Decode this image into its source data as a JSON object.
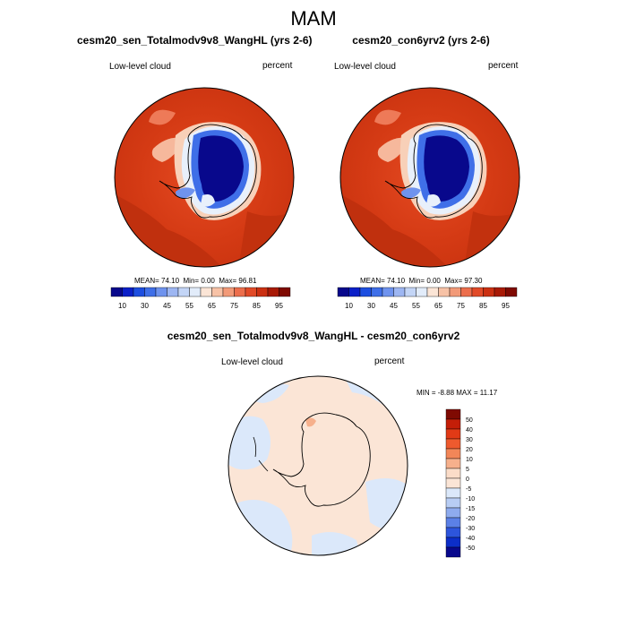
{
  "title": "MAM",
  "panels": [
    {
      "title": "cesm20_sen_Totalmodv9v8_WangHL (yrs 2-6)",
      "left_label": "Low-level cloud",
      "right_label": "percent",
      "stats": {
        "mean_label": "MEAN=",
        "mean": "74.10",
        "min_label": "Min=",
        "min": "0.00",
        "max_label": "Max=",
        "max": "96.81"
      }
    },
    {
      "title": "cesm20_con6yrv2 (yrs 2-6)",
      "left_label": "Low-level cloud",
      "right_label": "percent",
      "stats": {
        "mean_label": "MEAN=",
        "mean": "74.10",
        "min_label": "Min=",
        "min": "0.00",
        "max_label": "Max=",
        "max": "97.30"
      }
    }
  ],
  "diff_panel": {
    "title": "cesm20_sen_Totalmodv9v8_WangHL - cesm20_con6yrv2",
    "left_label": "Low-level cloud",
    "right_label": "percent",
    "stats": {
      "min_label": "MIN =",
      "min": "-8.88",
      "max_label": "MAX =",
      "max": "11.17"
    }
  },
  "chart_data": [
    {
      "type": "heatmap",
      "projection": "south-polar-stereographic",
      "title": "cesm20_sen_Totalmodv9v8_WangHL (yrs 2-6)",
      "variable": "Low-level cloud",
      "units": "percent",
      "colorbar_levels": [
        10,
        20,
        30,
        40,
        45,
        50,
        55,
        60,
        65,
        70,
        75,
        80,
        85,
        90,
        95
      ],
      "colorbar_tick_labels": [
        "10",
        "30",
        "45",
        "55",
        "65",
        "75",
        "85",
        "95"
      ],
      "colorbar_colors": [
        "#08088c",
        "#0b20c8",
        "#1d4ee0",
        "#3f6fe8",
        "#6f93ee",
        "#9db6f2",
        "#c3d5f6",
        "#e2ecfa",
        "#fbe5d6",
        "#f7c2a6",
        "#f29a78",
        "#ec6e4c",
        "#e14a28",
        "#cb3012",
        "#a81a06",
        "#7f0a02"
      ],
      "mean": 74.1,
      "min": 0.0,
      "max": 96.81
    },
    {
      "type": "heatmap",
      "projection": "south-polar-stereographic",
      "title": "cesm20_con6yrv2 (yrs 2-6)",
      "variable": "Low-level cloud",
      "units": "percent",
      "colorbar_levels": [
        10,
        20,
        30,
        40,
        45,
        50,
        55,
        60,
        65,
        70,
        75,
        80,
        85,
        90,
        95
      ],
      "colorbar_tick_labels": [
        "10",
        "30",
        "45",
        "55",
        "65",
        "75",
        "85",
        "95"
      ],
      "colorbar_colors": [
        "#08088c",
        "#0b20c8",
        "#1d4ee0",
        "#3f6fe8",
        "#6f93ee",
        "#9db6f2",
        "#c3d5f6",
        "#e2ecfa",
        "#fbe5d6",
        "#f7c2a6",
        "#f29a78",
        "#ec6e4c",
        "#e14a28",
        "#cb3012",
        "#a81a06",
        "#7f0a02"
      ],
      "mean": 74.1,
      "min": 0.0,
      "max": 97.3
    },
    {
      "type": "heatmap",
      "projection": "south-polar-stereographic",
      "title": "cesm20_sen_Totalmodv9v8_WangHL - cesm20_con6yrv2",
      "variable": "Low-level cloud",
      "units": "percent",
      "colorbar_levels": [
        "50",
        "40",
        "30",
        "20",
        "10",
        "5",
        "0",
        "-5",
        "-10",
        "-15",
        "-20",
        "-30",
        "-40",
        "-50"
      ],
      "colorbar_colors": [
        "#7f0a02",
        "#c41e08",
        "#e13a16",
        "#ee5a2e",
        "#f28658",
        "#f6b08c",
        "#fbdcc8",
        "#fbe5d6",
        "#dbe8fa",
        "#b8cdf4",
        "#8eabee",
        "#5b80e6",
        "#2d55dc",
        "#0c2ec8",
        "#08088c"
      ],
      "min": -8.88,
      "max": 11.17
    }
  ]
}
